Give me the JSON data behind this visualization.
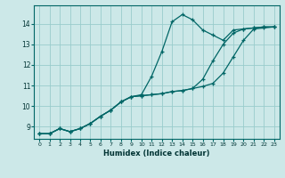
{
  "title": "",
  "xlabel": "Humidex (Indice chaleur)",
  "ylabel": "",
  "bg_color": "#cce8e8",
  "grid_color": "#99cccc",
  "line_color": "#006666",
  "xlim": [
    -0.5,
    23.5
  ],
  "ylim": [
    8.4,
    14.9
  ],
  "yticks": [
    9,
    10,
    11,
    12,
    13,
    14
  ],
  "xticks": [
    0,
    1,
    2,
    3,
    4,
    5,
    6,
    7,
    8,
    9,
    10,
    11,
    12,
    13,
    14,
    15,
    16,
    17,
    18,
    19,
    20,
    21,
    22,
    23
  ],
  "line1_x": [
    0,
    1,
    2,
    3,
    4,
    5,
    6,
    7,
    8,
    9,
    10,
    11,
    12,
    13,
    14,
    15,
    16,
    17,
    18,
    19,
    20,
    21,
    22,
    23
  ],
  "line1_y": [
    8.65,
    8.65,
    8.9,
    8.75,
    8.9,
    9.15,
    9.5,
    9.8,
    10.2,
    10.45,
    10.55,
    11.45,
    12.65,
    14.1,
    14.45,
    14.2,
    13.7,
    13.45,
    13.2,
    13.7,
    13.75,
    13.8,
    13.85,
    13.85
  ],
  "line2_x": [
    0,
    1,
    2,
    3,
    4,
    5,
    6,
    7,
    8,
    9,
    10,
    11,
    12,
    13,
    14,
    15,
    16,
    17,
    18,
    19,
    20,
    21,
    22,
    23
  ],
  "line2_y": [
    8.65,
    8.65,
    8.9,
    8.75,
    8.9,
    9.15,
    9.5,
    9.8,
    10.2,
    10.45,
    10.5,
    10.55,
    10.6,
    10.7,
    10.75,
    10.85,
    11.3,
    12.2,
    13.0,
    13.55,
    13.75,
    13.8,
    13.85,
    13.85
  ],
  "line3_x": [
    0,
    1,
    2,
    3,
    4,
    5,
    6,
    7,
    8,
    9,
    10,
    11,
    12,
    13,
    14,
    15,
    16,
    17,
    18,
    19,
    20,
    21,
    22,
    23
  ],
  "line3_y": [
    8.65,
    8.65,
    8.9,
    8.75,
    8.9,
    9.15,
    9.5,
    9.8,
    10.2,
    10.45,
    10.5,
    10.55,
    10.6,
    10.7,
    10.75,
    10.85,
    10.95,
    11.1,
    11.6,
    12.4,
    13.2,
    13.75,
    13.8,
    13.85
  ]
}
